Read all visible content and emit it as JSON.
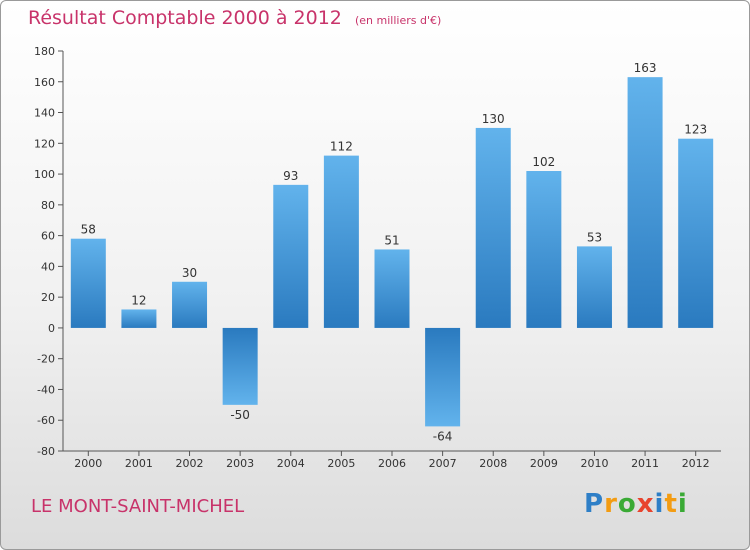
{
  "chart_data": {
    "type": "bar",
    "title": "Résultat Comptable 2000 à 2012",
    "subtitle": "(en milliers d'€)",
    "categories": [
      "2000",
      "2001",
      "2002",
      "2003",
      "2004",
      "2005",
      "2006",
      "2007",
      "2008",
      "2009",
      "2010",
      "2011",
      "2012"
    ],
    "values": [
      58,
      12,
      30,
      -50,
      93,
      112,
      51,
      -64,
      130,
      102,
      53,
      163,
      123
    ],
    "ylim": [
      -80,
      180
    ],
    "yticks": [
      180,
      160,
      140,
      120,
      100,
      80,
      60,
      40,
      20,
      0,
      -20,
      -40,
      -60,
      -80
    ],
    "xlabel": "",
    "ylabel": "",
    "grid": false,
    "bar_color_light": "#62b3ec",
    "bar_color_dark": "#2a7abf"
  },
  "footer": {
    "place": "LE MONT-SAINT-MICHEL",
    "logo_letters": [
      "P",
      "r",
      "o",
      "x",
      "i",
      "t",
      "i"
    ],
    "logo_colors": [
      "#2e7fc7",
      "#f39c12",
      "#3aaa35",
      "#e8442e",
      "#2e7fc7",
      "#f39c12",
      "#3aaa35"
    ]
  },
  "colors": {
    "title": "#c8336a",
    "axis": "#555555"
  }
}
